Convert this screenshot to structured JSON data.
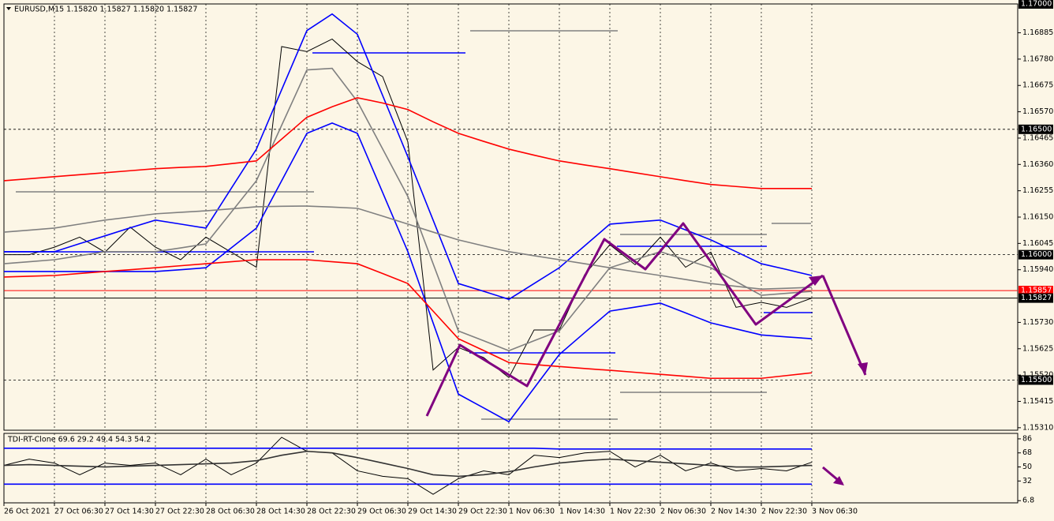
{
  "chart_data": [
    {
      "type": "line",
      "title": "EURUSD,M15  1.15820 1.15827 1.15820 1.15827",
      "categories": [
        "26 Oct 2021",
        null,
        "27 Oct 06:30",
        null,
        "27 Oct 14:30",
        null,
        "27 Oct 22:30",
        null,
        "28 Oct 06:30",
        null,
        "28 Oct 14:30",
        null,
        "28 Oct 22:30",
        null,
        "29 Oct 06:30",
        null,
        "29 Oct 14:30",
        null,
        "29 Oct 22:30",
        null,
        "1 Nov 06:30",
        null,
        "1 Nov 14:30",
        null,
        "1 Nov 22:30",
        null,
        "2 Nov 06:30",
        null,
        "2 Nov 14:30",
        null,
        "2 Nov 22:30",
        null,
        "3 Nov 06:30"
      ],
      "series": [
        {
          "color": "#000000",
          "values": [
            1.16,
            1.16,
            1.1603,
            1.1607,
            1.1601,
            1.1611,
            1.1603,
            1.1598,
            1.1607,
            1.1601,
            1.1595,
            1.1683,
            1.1681,
            1.1686,
            1.1677,
            1.1671,
            1.1645,
            1.1554,
            1.1563,
            1.1559,
            1.1551,
            1.157,
            1.157,
            1.1592,
            1.1604,
            1.1596,
            1.1607,
            1.1595,
            1.1601,
            1.1579,
            1.1581,
            1.1579,
            1.15827
          ]
        },
        {
          "color": "#0000ff",
          "values": [
            1.16012,
            1.16012,
            1.16012,
            1.16044,
            1.16075,
            1.16107,
            1.16138,
            1.16122,
            1.16106,
            1.16264,
            1.16421,
            1.16658,
            1.16894,
            1.1696,
            1.16879,
            1.16635,
            1.1639,
            1.16138,
            1.15885,
            1.15854,
            1.15822,
            1.15885,
            1.15948,
            1.16035,
            1.16122,
            1.1613,
            1.16138,
            1.16099,
            1.16059,
            1.16012,
            1.15964,
            1.15941,
            1.15917
          ]
        },
        {
          "color": "#0000ff",
          "values": [
            1.15933,
            1.15933,
            1.15933,
            1.15933,
            1.15933,
            1.15933,
            1.15933,
            1.1594,
            1.15948,
            1.16027,
            1.16106,
            1.16295,
            1.16484,
            1.16525,
            1.16484,
            1.16248,
            1.16012,
            1.15728,
            1.15444,
            1.15389,
            1.15334,
            1.15468,
            1.15602,
            1.15689,
            1.15775,
            1.15791,
            1.15807,
            1.15768,
            1.15728,
            1.15704,
            1.1568,
            1.15672,
            1.15665
          ]
        },
        {
          "color": "#808080",
          "values": [
            1.15964,
            1.15972,
            1.1598,
            1.15996,
            1.16012,
            1.16012,
            1.16012,
            1.16027,
            1.16043,
            1.16169,
            1.16295,
            1.16516,
            1.16737,
            1.16743,
            1.16611,
            1.16422,
            1.16232,
            1.15964,
            1.15696,
            1.15657,
            1.15617,
            1.15657,
            1.15696,
            1.15822,
            1.15948,
            1.1598,
            1.16012,
            1.1598,
            1.15948,
            1.15893,
            1.15838,
            1.15846,
            1.15854
          ]
        },
        {
          "color": "#808080",
          "values": [
            1.1609,
            1.16098,
            1.16106,
            1.16122,
            1.16138,
            1.1615,
            1.16163,
            1.16169,
            1.16175,
            1.16183,
            1.16191,
            1.16193,
            1.16194,
            1.1619,
            1.16185,
            1.16154,
            1.16122,
            1.1609,
            1.16059,
            1.16035,
            1.16012,
            1.15996,
            1.1598,
            1.15964,
            1.15948,
            1.15932,
            1.15917,
            1.15901,
            1.15885,
            1.15874,
            1.15863,
            1.15866,
            1.1587
          ]
        },
        {
          "color": "#ff0000",
          "values": [
            1.16295,
            1.16303,
            1.16311,
            1.16319,
            1.16327,
            1.16335,
            1.16343,
            1.16348,
            1.16352,
            1.16363,
            1.16374,
            1.16461,
            1.16548,
            1.1659,
            1.16626,
            1.16605,
            1.16579,
            1.1653,
            1.16484,
            1.16452,
            1.16421,
            1.16397,
            1.16374,
            1.16358,
            1.16343,
            1.16327,
            1.16311,
            1.16295,
            1.1628,
            1.16272,
            1.16264,
            1.16264,
            1.16264
          ]
        },
        {
          "color": "#ff0000",
          "values": [
            1.15911,
            1.15914,
            1.15917,
            1.15925,
            1.15933,
            1.1594,
            1.15948,
            1.15956,
            1.15964,
            1.15972,
            1.1598,
            1.1598,
            1.1598,
            1.15972,
            1.15964,
            1.15925,
            1.15885,
            1.15775,
            1.15665,
            1.15618,
            1.1557,
            1.15562,
            1.15554,
            1.15546,
            1.15539,
            1.15531,
            1.15523,
            1.15515,
            1.15507,
            1.15507,
            1.15507,
            1.15518,
            1.15529
          ]
        }
      ],
      "ylim": [
        1.153,
        1.17
      ],
      "yticks": [
        1.16885,
        {
          "value": 1.1678,
          "label": "1.16780"
        },
        1.16675,
        {
          "value": 1.1657,
          "label": "1.16570"
        },
        1.16465,
        {
          "value": 1.1636,
          "label": "1.16360"
        },
        1.16255,
        {
          "value": 1.1615,
          "label": "1.16150"
        },
        1.16045,
        {
          "value": 1.1594,
          "label": "1.15940"
        },
        {
          "value": 1.1573,
          "label": "1.15730"
        },
        1.15625,
        {
          "value": 1.1552,
          "label": "1.15520"
        },
        1.15415,
        {
          "value": 1.1531,
          "label": "1.15310"
        }
      ],
      "levels": [
        {
          "value": 1.17,
          "label": "1.17000",
          "color": "#000000",
          "dashed": true
        },
        {
          "value": 1.165,
          "label": "1.16500",
          "color": "#000000",
          "dashed": true
        },
        {
          "value": 1.16,
          "label": "1.16000",
          "color": "#000000",
          "dashed": true
        },
        {
          "value": 1.15857,
          "label": "1.15857",
          "color": "#ff0000",
          "dashed": false
        },
        {
          "value": 1.15827,
          "label": "1.15827",
          "color": "#000000",
          "dashed": false
        },
        {
          "value": 1.155,
          "label": "1.15500",
          "color": "#000000",
          "dashed": true
        }
      ],
      "grid": true
    },
    {
      "type": "line",
      "title": "TDI-RT-Clone 69.6 29.2 49.4 54.3 54.2",
      "series": [
        {
          "color": "#000000",
          "values": [
            52,
            60,
            55,
            40,
            55,
            52,
            55,
            40,
            60,
            40,
            55,
            88,
            70,
            68,
            45,
            38,
            35,
            15,
            35,
            45,
            40,
            65,
            62,
            68,
            70,
            50,
            65,
            45,
            55,
            45,
            48,
            45,
            56
          ]
        },
        {
          "color": "#333333",
          "values": [
            52,
            53,
            52,
            51,
            50,
            51,
            52,
            53,
            54,
            55,
            58,
            65,
            70,
            68,
            62,
            55,
            48,
            40,
            38,
            40,
            44,
            50,
            55,
            58,
            60,
            58,
            56,
            54,
            52,
            50,
            50,
            51,
            52
          ]
        },
        {
          "color": "#0000ff",
          "values": [
            74,
            74,
            74,
            74,
            74,
            74,
            74,
            74,
            74,
            74,
            74,
            74,
            74,
            74,
            74,
            74,
            74,
            74,
            74,
            74,
            74,
            74,
            73,
            73,
            73,
            73,
            73,
            73,
            73,
            73,
            73,
            73,
            73
          ]
        },
        {
          "color": "#0000ff",
          "values": [
            28,
            28,
            28,
            28,
            28,
            28,
            28,
            28,
            28,
            28,
            28,
            28,
            28,
            28,
            28,
            28,
            28,
            28,
            28,
            28,
            28,
            28,
            28,
            28,
            28,
            28,
            28,
            28,
            28,
            28,
            28,
            28,
            28
          ]
        }
      ],
      "ylim": [
        4,
        93
      ],
      "yticks": [
        86,
        68,
        50,
        32,
        6.8
      ]
    }
  ]
}
